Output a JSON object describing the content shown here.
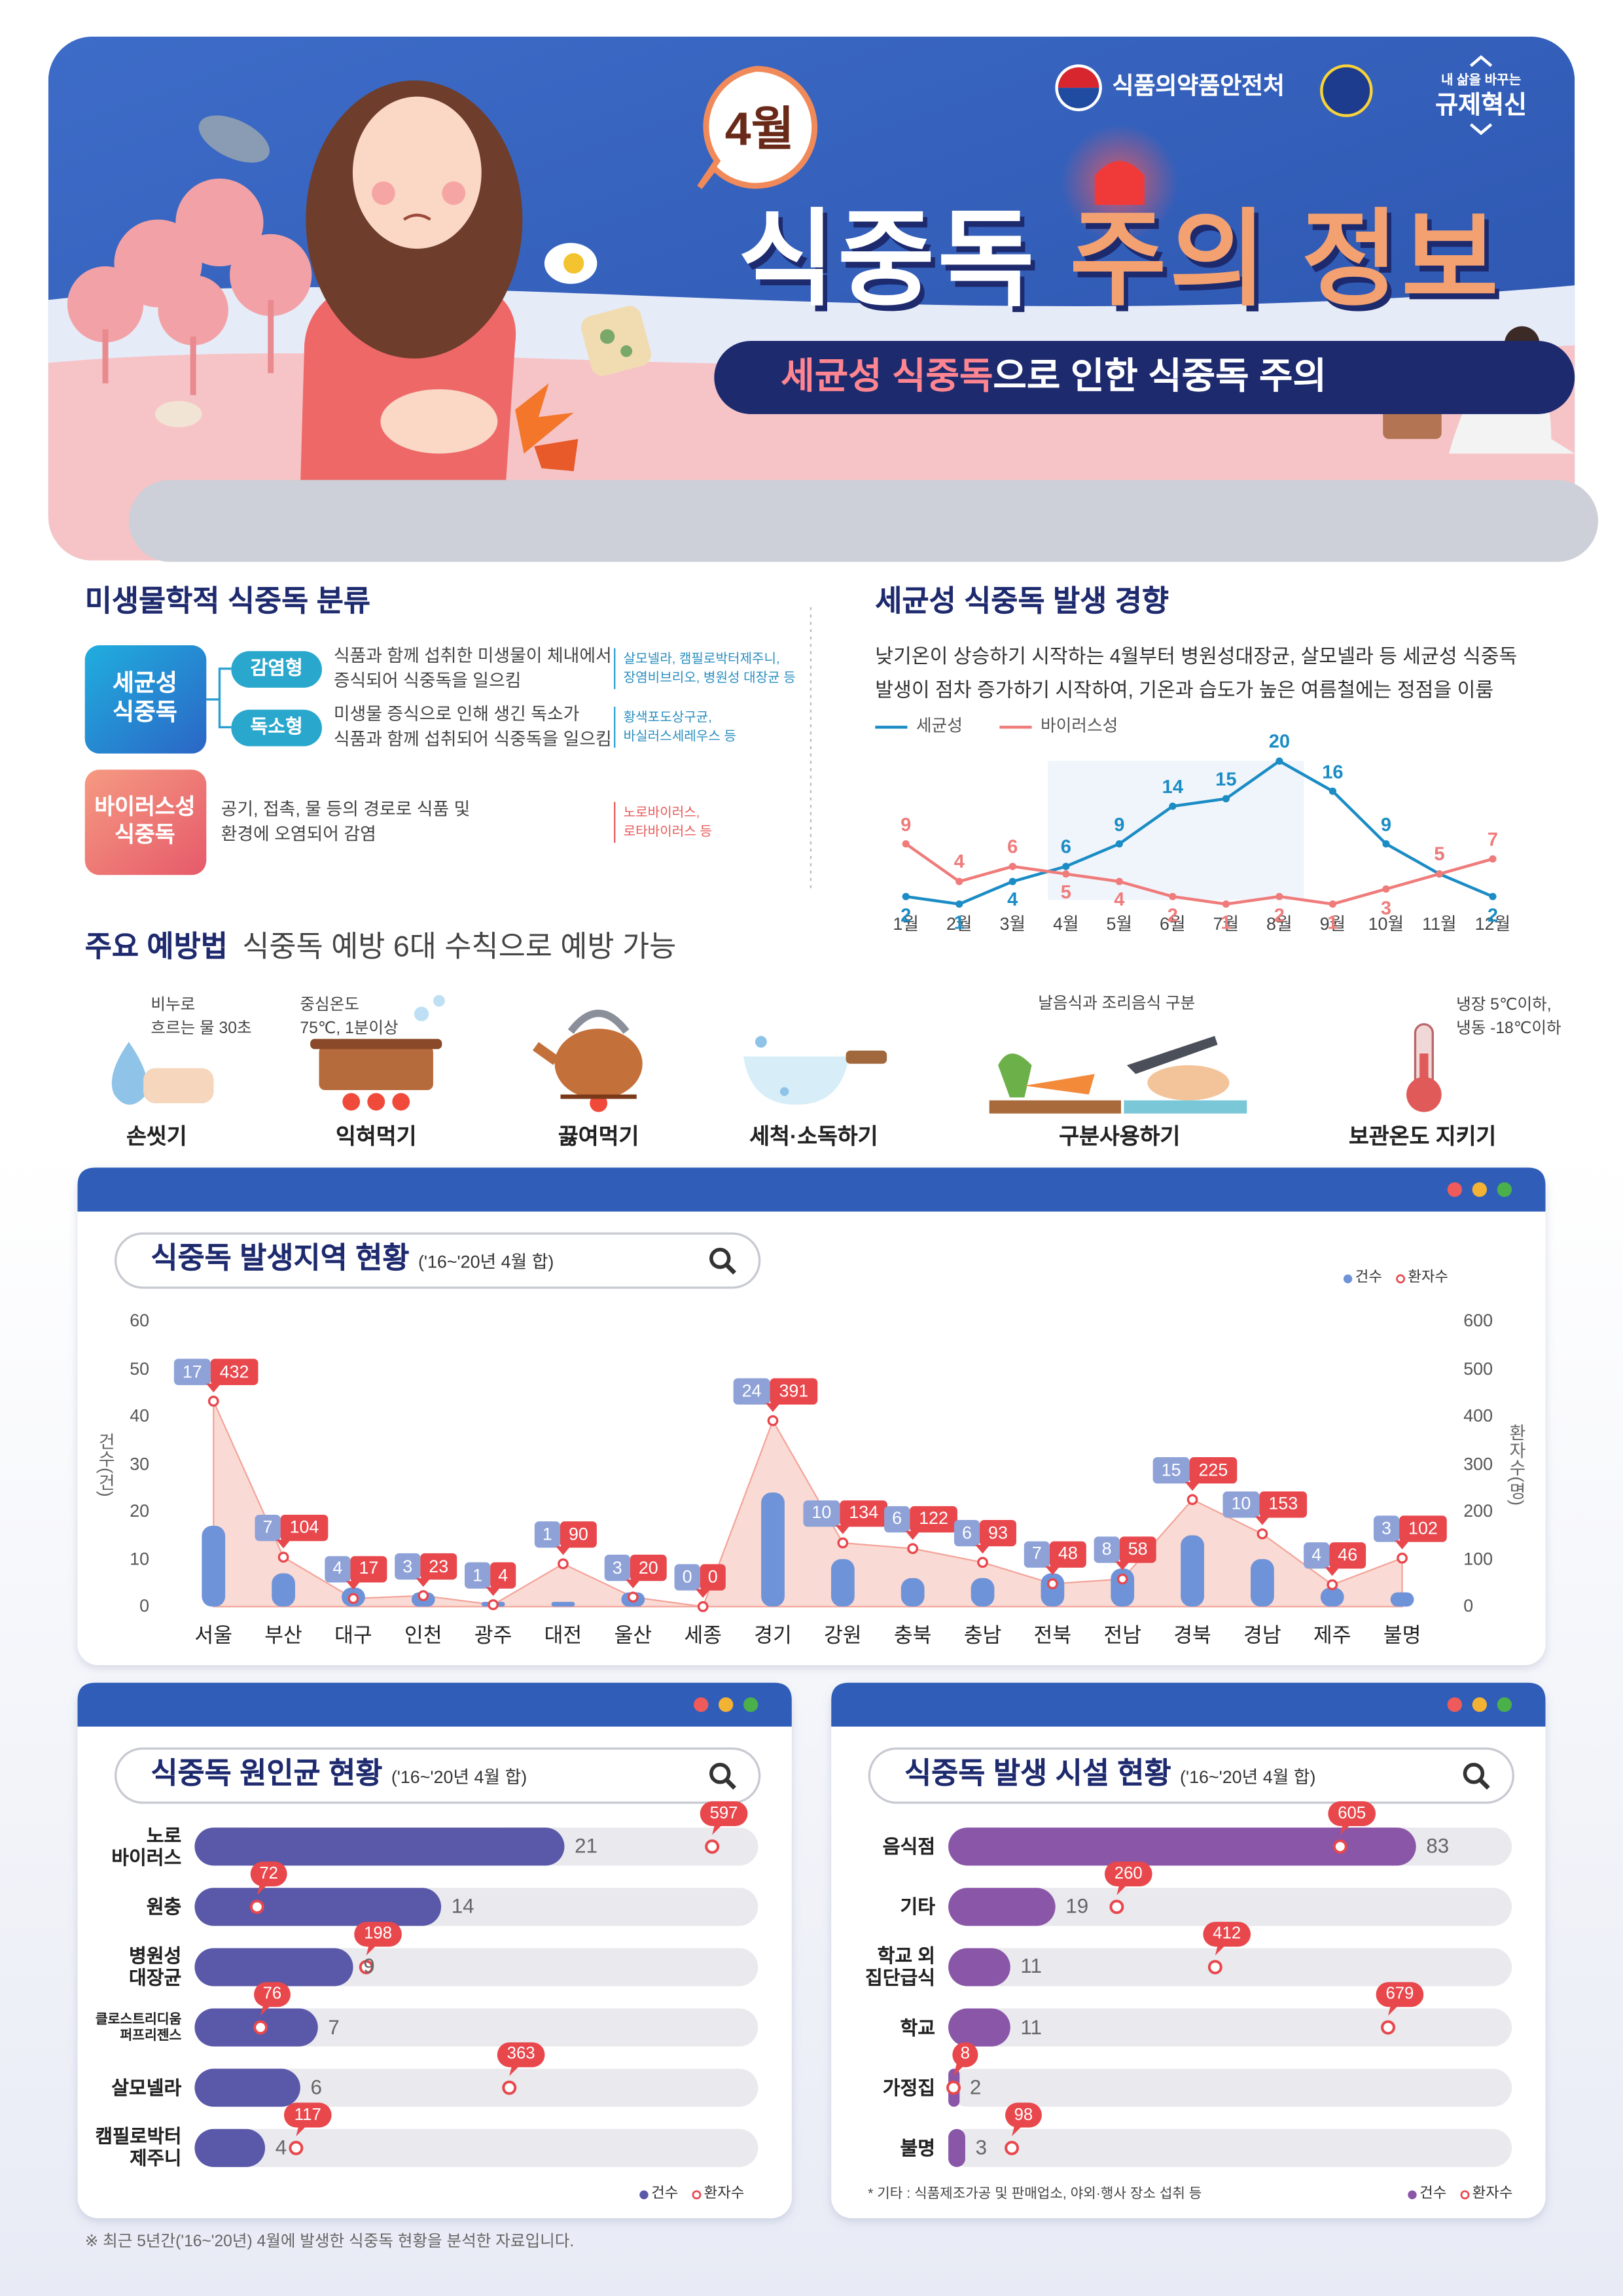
{
  "header": {
    "org": "식품의약품안전처",
    "campaign_top": "내 삶을 바꾸는",
    "campaign": "규제혁신",
    "month": "4월",
    "title_a": "식중독",
    "title_b": "주의 정보",
    "subtitle_a": "세균성 식중독",
    "subtitle_b": "으로 인한 식중독 주의"
  },
  "classification": {
    "title": "미생물학적 식중독 분류",
    "groups": [
      {
        "name": "세균성\n식중독",
        "types": [
          {
            "name": "감염형",
            "desc": "식품과 함께 섭취한 미생물이 체내에서\n증식되어 식중독을 일으킴",
            "examples": "살모넬라, 캠필로박터제주니,\n장염비브리오, 병원성 대장균 등"
          },
          {
            "name": "독소형",
            "desc": "미생물 증식으로 인해 생긴 독소가\n식품과 함께 섭취되어 식중독을 일으킴",
            "examples": "황색포도상구균,\n바실러스세레우스 등"
          }
        ]
      },
      {
        "name": "바이러스성\n식중독",
        "desc": "공기, 접촉, 물 등의 경로로 식품 및\n환경에 오염되어 감염",
        "examples": "노로바이러스,\n로타바이러스 등"
      }
    ]
  },
  "prevention": {
    "title_a": "주요 예방법",
    "title_b": "식중독 예방 6대 수칙으로 예방 가능",
    "items": [
      {
        "label": "손씻기",
        "note": "비누로\n흐르는 물 30초"
      },
      {
        "label": "익혀먹기",
        "note": "중심온도\n75℃, 1분이상"
      },
      {
        "label": "끓여먹기"
      },
      {
        "label": "세척·소독하기"
      },
      {
        "label": "구분사용하기",
        "note": "날음식과 조리음식 구분"
      },
      {
        "label": "보관온도 지키기",
        "note": "냉장 5℃이하,\n냉동 -18℃이하"
      }
    ]
  },
  "chart_data": [
    {
      "type": "line",
      "title": "세균성 식중독 발생 경향",
      "description": "낮기온이 상승하기 시작하는 4월부터 병원성대장균, 살모넬라 등 세균성 식중독\n발생이 점차 증가하기 시작하여, 기온과 습도가 높은 여름철에는 정점을 이룸",
      "categories": [
        "1월",
        "2월",
        "3월",
        "4월",
        "5월",
        "6월",
        "7월",
        "8월",
        "9월",
        "10월",
        "11월",
        "12월"
      ],
      "series": [
        {
          "name": "세균성",
          "color": "#1b8cc4",
          "values": [
            2,
            1,
            4,
            6,
            9,
            14,
            15,
            20,
            16,
            9,
            5,
            2
          ]
        },
        {
          "name": "바이러스성",
          "color": "#ef7b7b",
          "values": [
            9,
            4,
            6,
            5,
            4,
            2,
            1,
            2,
            1,
            3,
            5,
            7
          ]
        }
      ],
      "ylim": [
        0,
        21
      ],
      "legend": "top-left"
    },
    {
      "type": "bar",
      "title": "식중독 발생지역 현황",
      "subtitle": "('16~'20년 4월 합)",
      "categories": [
        "서울",
        "부산",
        "대구",
        "인천",
        "광주",
        "대전",
        "울산",
        "세종",
        "경기",
        "강원",
        "충북",
        "충남",
        "전북",
        "전남",
        "경북",
        "경남",
        "제주",
        "불명"
      ],
      "series": [
        {
          "name": "건수",
          "color": "#6f93d8",
          "values": [
            17,
            7,
            4,
            3,
            1,
            1,
            3,
            0,
            24,
            10,
            6,
            6,
            7,
            8,
            15,
            10,
            4,
            3
          ]
        },
        {
          "name": "환자수",
          "color": "#e8474c",
          "axis": "y2",
          "values": [
            432,
            104,
            17,
            23,
            4,
            90,
            20,
            0,
            391,
            134,
            122,
            93,
            48,
            58,
            225,
            153,
            46,
            102
          ]
        }
      ],
      "ylabel": "건수(건)",
      "y2label": "환자수(명)",
      "ylim": [
        0,
        60
      ],
      "yticks": [
        0,
        10,
        20,
        30,
        40,
        50,
        60
      ],
      "y2lim": [
        0,
        600
      ],
      "y2ticks": [
        0,
        100,
        200,
        300,
        400,
        500,
        600
      ],
      "grid": false,
      "legend": "top-right"
    },
    {
      "type": "bar",
      "orientation": "horizontal",
      "title": "식중독 원인균 현황",
      "subtitle": "('16~'20년 4월 합)",
      "categories": [
        "노로\n바이러스",
        "원충",
        "병원성\n대장균",
        "클로스트리디움\n퍼프리젠스",
        "살모넬라",
        "캠필로박터\n제주니"
      ],
      "series": [
        {
          "name": "건수",
          "color": "#5a58a8",
          "values": [
            21,
            14,
            9,
            7,
            6,
            4
          ]
        },
        {
          "name": "환자수",
          "color": "#e8474c",
          "axis": "x2",
          "values": [
            597,
            72,
            198,
            76,
            363,
            117
          ]
        }
      ],
      "xlim": [
        0,
        32
      ],
      "x2lim": [
        0,
        650
      ],
      "legend": "bottom-right"
    },
    {
      "type": "bar",
      "orientation": "horizontal",
      "title": "식중독 발생 시설 현황",
      "subtitle": "('16~'20년 4월 합)",
      "categories": [
        "음식점",
        "기타",
        "학교 외\n집단급식",
        "학교",
        "가정집",
        "불명"
      ],
      "series": [
        {
          "name": "건수",
          "color": "#8a56a8",
          "values": [
            83,
            19,
            11,
            11,
            2,
            3
          ]
        },
        {
          "name": "환자수",
          "color": "#e8474c",
          "axis": "x2",
          "values": [
            605,
            260,
            412,
            679,
            8,
            98
          ]
        }
      ],
      "xlim": [
        0,
        100
      ],
      "x2lim": [
        0,
        870
      ],
      "legend": "bottom-right",
      "note": "* 기타 : 식품제조가공 및 판매업소, 야외·행사 장소 섭취 등"
    }
  ],
  "footnote": "※ 최근 5년간('16~'20년) 4월에 발생한 식중독 현황을 분석한 자료입니다."
}
